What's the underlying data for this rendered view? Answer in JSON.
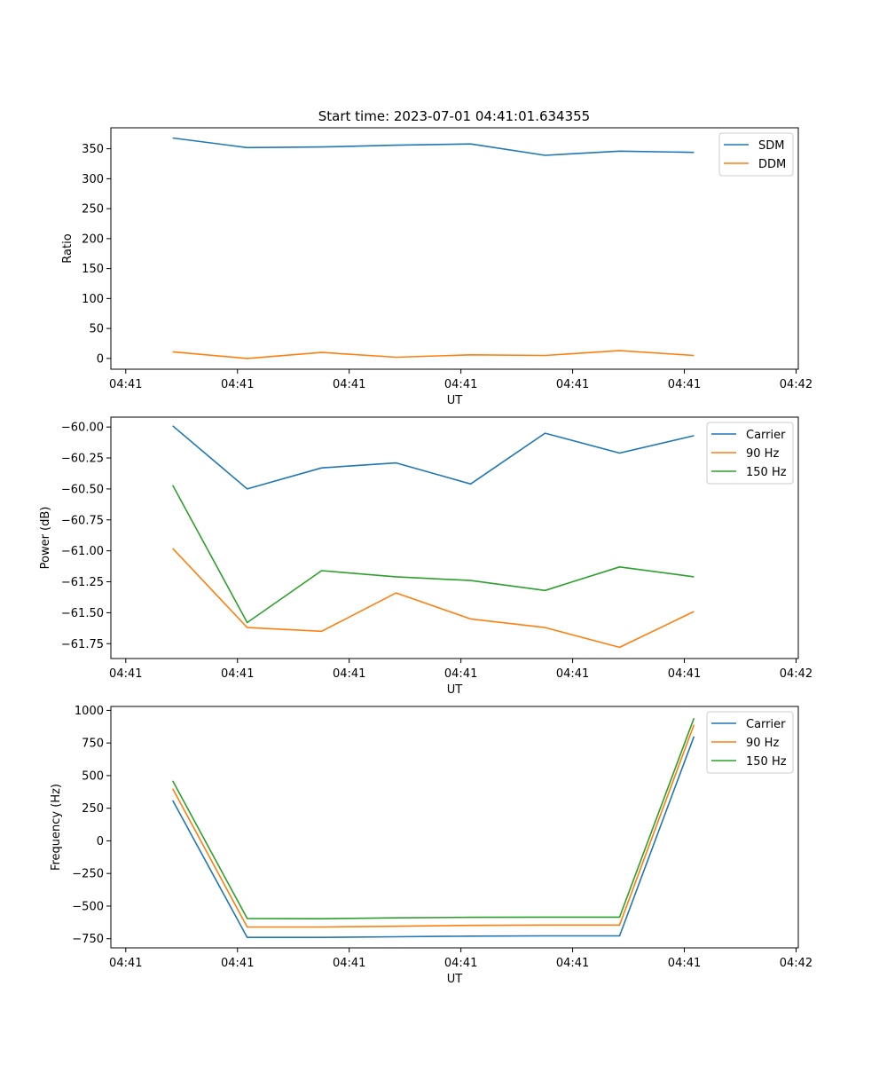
{
  "figure": {
    "title": "Start time: 2023-07-01 04:41:01.634355"
  },
  "chart_data": [
    {
      "type": "line",
      "xlabel": "UT",
      "ylabel": "Ratio",
      "x": [
        1,
        2,
        3,
        4,
        5,
        6,
        7,
        8
      ],
      "xlim": [
        0.17,
        9.4
      ],
      "xticks": [
        0.37,
        1.87,
        3.37,
        4.87,
        6.37,
        7.87,
        9.37
      ],
      "xtick_labels": [
        "04:41",
        "04:41",
        "04:41",
        "04:41",
        "04:41",
        "04:41",
        "04:42"
      ],
      "ylim": [
        -18,
        385
      ],
      "yticks": [
        0,
        50,
        100,
        150,
        200,
        250,
        300,
        350
      ],
      "ytick_labels": [
        "0",
        "50",
        "100",
        "150",
        "200",
        "250",
        "300",
        "350"
      ],
      "legend": "top-right",
      "series": [
        {
          "name": "SDM",
          "color": "#1f77b4",
          "values": [
            368,
            352,
            353,
            356,
            358,
            339,
            346,
            344
          ]
        },
        {
          "name": "DDM",
          "color": "#ff7f0e",
          "values": [
            11,
            0,
            10,
            2,
            6,
            5,
            13,
            5
          ]
        }
      ]
    },
    {
      "type": "line",
      "xlabel": "UT",
      "ylabel": "Power (dB)",
      "x": [
        1,
        2,
        3,
        4,
        5,
        6,
        7,
        8
      ],
      "xlim": [
        0.17,
        9.4
      ],
      "xticks": [
        0.37,
        1.87,
        3.37,
        4.87,
        6.37,
        7.87,
        9.37
      ],
      "xtick_labels": [
        "04:41",
        "04:41",
        "04:41",
        "04:41",
        "04:41",
        "04:41",
        "04:42"
      ],
      "ylim": [
        -61.87,
        -59.92
      ],
      "yticks": [
        -60.0,
        -60.25,
        -60.5,
        -60.75,
        -61.0,
        -61.25,
        -61.5,
        -61.75
      ],
      "ytick_labels": [
        "−60.00",
        "−60.25",
        "−60.50",
        "−60.75",
        "−61.00",
        "−61.25",
        "−61.50",
        "−61.75"
      ],
      "legend": "top-right",
      "series": [
        {
          "name": "Carrier",
          "color": "#1f77b4",
          "values": [
            -59.99,
            -60.5,
            -60.33,
            -60.29,
            -60.46,
            -60.05,
            -60.21,
            -60.07
          ]
        },
        {
          "name": "90 Hz",
          "color": "#ff7f0e",
          "values": [
            -60.98,
            -61.62,
            -61.65,
            -61.34,
            -61.55,
            -61.62,
            -61.78,
            -61.49
          ]
        },
        {
          "name": "150 Hz",
          "color": "#2ca02c",
          "values": [
            -60.47,
            -61.58,
            -61.16,
            -61.21,
            -61.24,
            -61.32,
            -61.13,
            -61.21
          ]
        }
      ]
    },
    {
      "type": "line",
      "xlabel": "UT",
      "ylabel": "Frequency (Hz)",
      "x": [
        1,
        2,
        3,
        4,
        5,
        6,
        7,
        8
      ],
      "xlim": [
        0.17,
        9.4
      ],
      "xticks": [
        0.37,
        1.87,
        3.37,
        4.87,
        6.37,
        7.87,
        9.37
      ],
      "xtick_labels": [
        "04:41",
        "04:41",
        "04:41",
        "04:41",
        "04:41",
        "04:41",
        "04:42"
      ],
      "ylim": [
        -820,
        1030
      ],
      "yticks": [
        1000,
        750,
        500,
        250,
        0,
        -250,
        -500,
        -750
      ],
      "ytick_labels": [
        "1000",
        "750",
        "500",
        "250",
        "0",
        "−250",
        "−500",
        "−750"
      ],
      "legend": "top-right",
      "series": [
        {
          "name": "Carrier",
          "color": "#1f77b4",
          "values": [
            310,
            -740,
            -740,
            -735,
            -730,
            -728,
            -728,
            800
          ]
        },
        {
          "name": "90 Hz",
          "color": "#ff7f0e",
          "values": [
            400,
            -660,
            -660,
            -655,
            -648,
            -645,
            -645,
            890
          ]
        },
        {
          "name": "150 Hz",
          "color": "#2ca02c",
          "values": [
            460,
            -595,
            -597,
            -590,
            -586,
            -585,
            -585,
            940
          ]
        }
      ]
    }
  ]
}
